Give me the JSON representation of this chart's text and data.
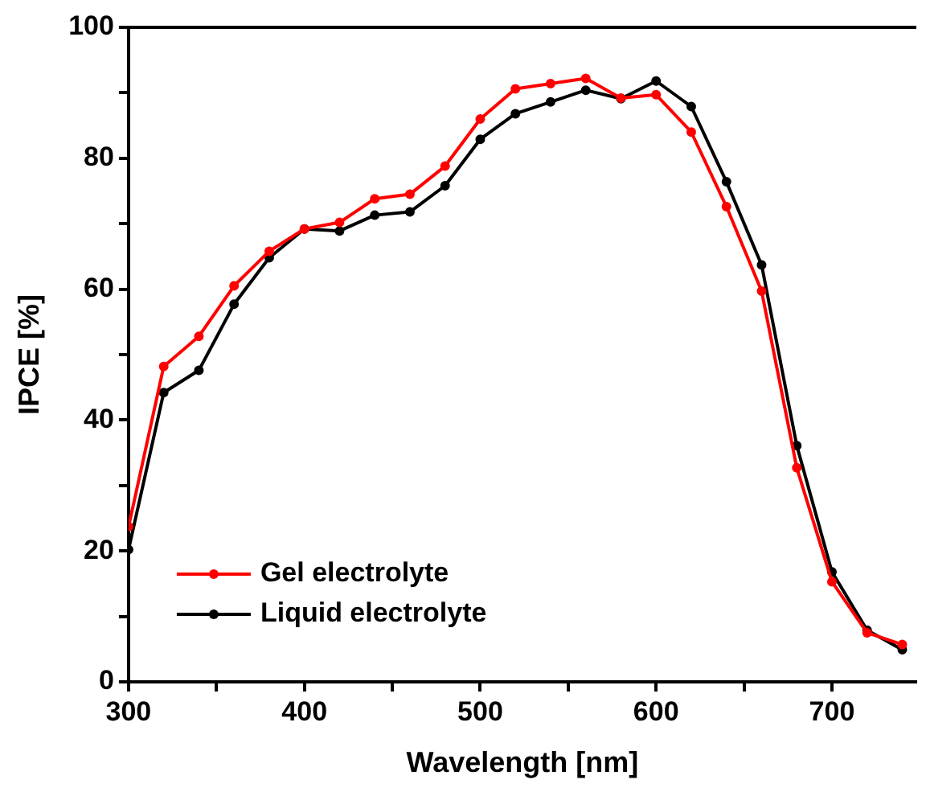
{
  "chart_data": {
    "type": "line",
    "xlabel": "Wavelength [nm]",
    "ylabel": "IPCE [%]",
    "x": [
      300,
      320,
      340,
      360,
      380,
      400,
      420,
      440,
      460,
      480,
      500,
      520,
      540,
      560,
      580,
      600,
      620,
      640,
      660,
      680,
      700,
      720,
      740
    ],
    "series": [
      {
        "name": "Gel electrolyte",
        "color": "#ff0000",
        "values": [
          23.7,
          48.2,
          52.8,
          60.5,
          65.8,
          69.2,
          70.2,
          73.8,
          74.5,
          78.8,
          86,
          90.6,
          91.4,
          92.2,
          89.2,
          89.7,
          84,
          72.6,
          59.7,
          32.7,
          15.3,
          7.5,
          5.7
        ]
      },
      {
        "name": "Liquid electrolyte",
        "color": "#000000",
        "values": [
          20.2,
          44.2,
          47.6,
          57.7,
          64.8,
          69.2,
          68.9,
          71.3,
          71.8,
          75.8,
          82.9,
          86.8,
          88.6,
          90.4,
          89.1,
          91.8,
          87.9,
          76.4,
          63.7,
          36.1,
          16.8,
          7.9,
          4.9
        ]
      }
    ],
    "xlim": [
      300,
      748
    ],
    "xticks": [
      300,
      {
        "value": 350,
        "label": null
      },
      400,
      {
        "value": 450,
        "label": null
      },
      500,
      {
        "value": 550,
        "label": null
      },
      600,
      {
        "value": 650,
        "label": null
      },
      700
    ],
    "ylim": [
      0,
      100
    ],
    "yticks": [
      0,
      {
        "value": 10,
        "label": null
      },
      20,
      {
        "value": 30,
        "label": null
      },
      40,
      {
        "value": 50,
        "label": null
      },
      60,
      {
        "value": 70,
        "label": null
      },
      80,
      {
        "value": 90,
        "label": null
      },
      100
    ],
    "grid": false,
    "legend": "bottom left",
    "marker": "circle",
    "line_style": "solid"
  }
}
